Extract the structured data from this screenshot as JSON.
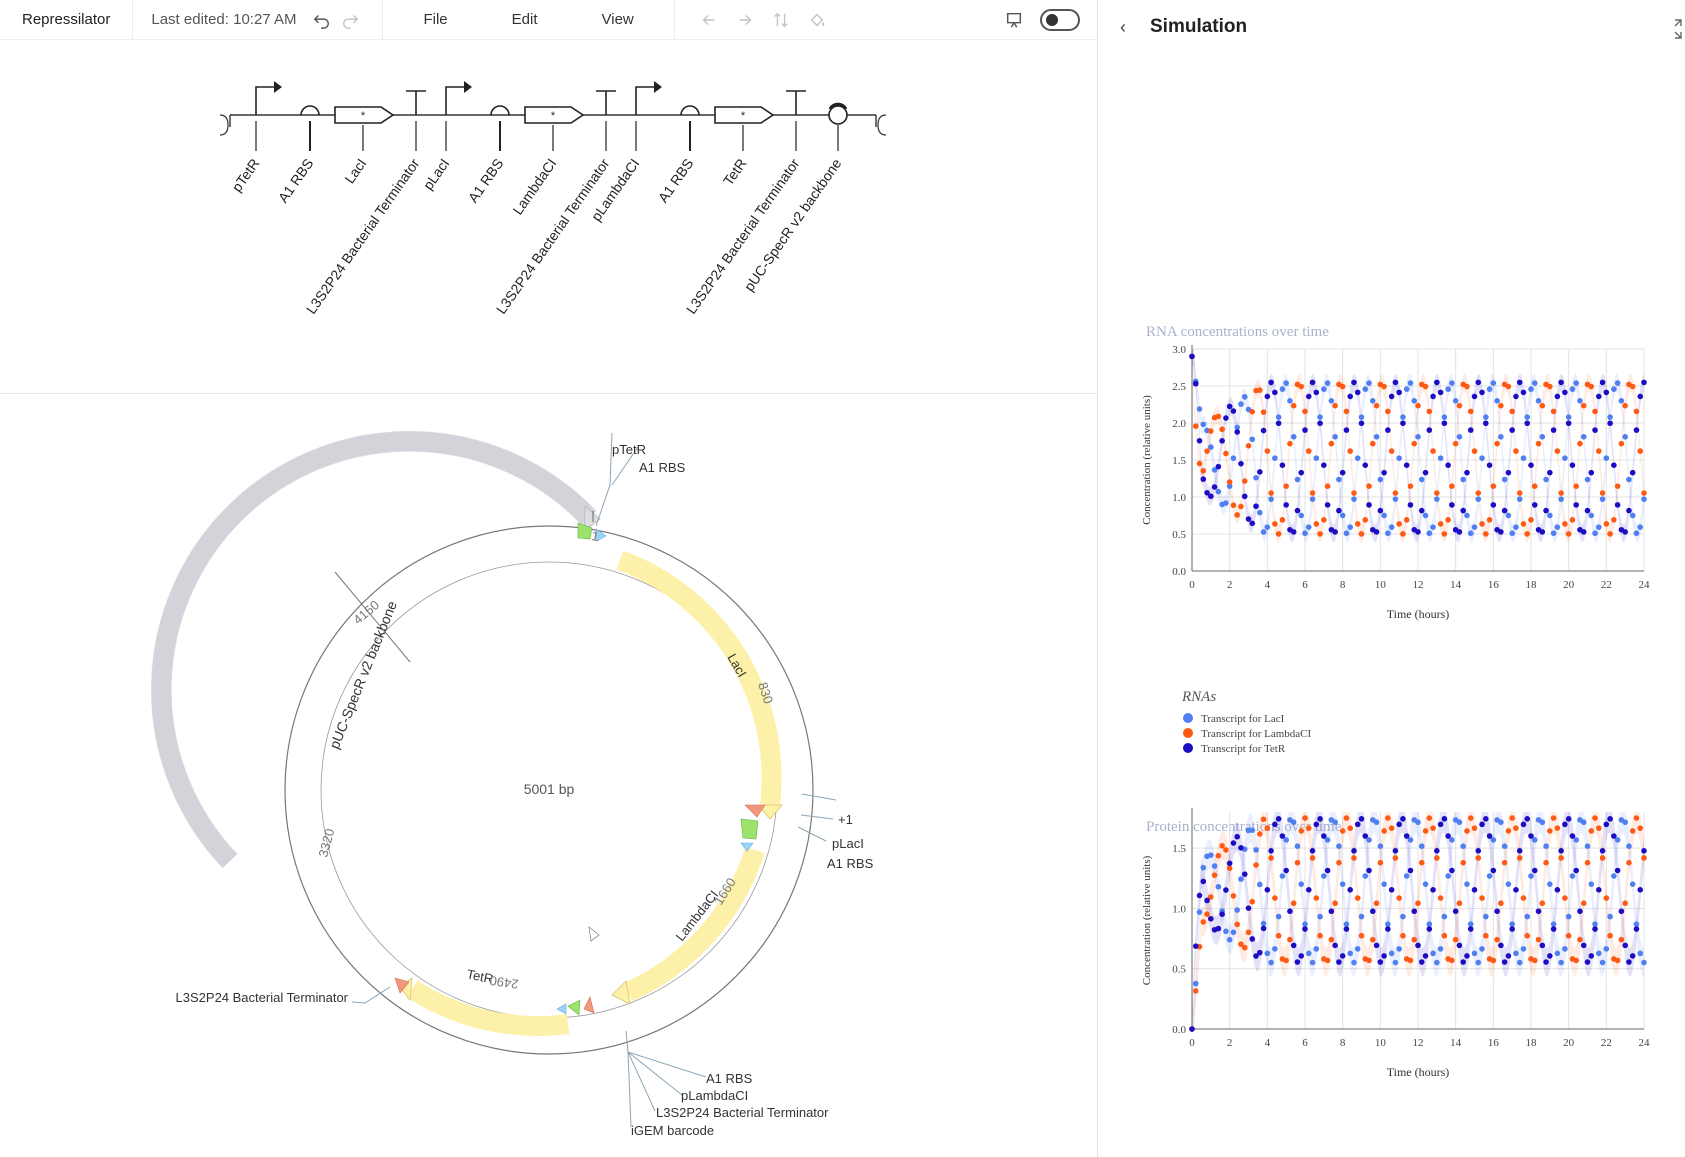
{
  "toolbar": {
    "title": "Repressilator",
    "last_edited": "Last edited: 10:27 AM",
    "menus": [
      "File",
      "Edit",
      "View"
    ]
  },
  "design": {
    "parts": [
      {
        "type": "promoter",
        "label": "pTetR"
      },
      {
        "type": "rbs",
        "label": "A1 RBS"
      },
      {
        "type": "cds",
        "label": "LacI"
      },
      {
        "type": "terminator",
        "label": "L3S2P24 Bacterial Terminator"
      },
      {
        "type": "promoter",
        "label": "pLacI"
      },
      {
        "type": "rbs",
        "label": "A1 RBS"
      },
      {
        "type": "cds",
        "label": "LambdaCI"
      },
      {
        "type": "terminator",
        "label": "L3S2P24 Bacterial Terminator"
      },
      {
        "type": "promoter",
        "label": "pLambdaCI"
      },
      {
        "type": "rbs",
        "label": "A1 RBS"
      },
      {
        "type": "cds",
        "label": "TetR"
      },
      {
        "type": "terminator",
        "label": "L3S2P24 Bacterial Terminator"
      },
      {
        "type": "origin",
        "label": "pUC-SpecR v2 backbone"
      }
    ]
  },
  "plasmid": {
    "size_label": "5001 bp",
    "ticks": [
      "1",
      "830",
      "1660",
      "2490",
      "3320",
      "4150"
    ],
    "feature_labels": {
      "lacI": "LacI",
      "lambdaCI": "LambdaCI",
      "tetR": "TetR",
      "backbone": "pUC-SpecR v2 backbone"
    },
    "annotations": {
      "ptetr": "pTetR",
      "a1rbs_top": "A1 RBS",
      "plus1": "+1",
      "placi": "pLacI",
      "a1rbs_right": "A1 RBS",
      "term_left": "L3S2P24 Bacterial Terminator",
      "a1rbs_bottom": "A1 RBS",
      "plambdaci": "pLambdaCI",
      "term_bottom": "L3S2P24 Bacterial Terminator",
      "igem": "iGEM barcode"
    }
  },
  "simulation": {
    "title": "Simulation",
    "colors": {
      "lacI": "#4f7ff0",
      "lambdaCI": "#ff5a14",
      "tetR": "#1c0cc4"
    },
    "legend_title": "RNAs",
    "legend_items": [
      "Transcript for LacI",
      "Transcript for LambdaCI",
      "Transcript for TetR"
    ],
    "rna_chart_title": "RNA concentrations over time",
    "protein_chart_title": "Protein concentrations over time"
  },
  "chart_data": [
    {
      "type": "scatter",
      "title": "RNA concentrations over time",
      "xlabel": "Time (hours)",
      "ylabel": "Concentration (relative units)",
      "xlim": [
        0,
        24
      ],
      "ylim": [
        0,
        3.0
      ],
      "xticks": [
        0,
        2,
        4,
        6,
        8,
        10,
        12,
        14,
        16,
        18,
        20,
        22,
        24
      ],
      "yticks": [
        0.0,
        0.5,
        1.0,
        1.5,
        2.0,
        2.5,
        3.0
      ],
      "grid": true,
      "oscillation": {
        "period_hours": 2.2,
        "initial": 2.9,
        "low": 0.5,
        "high": 2.55,
        "sample_step_hours": 0.2
      },
      "series": [
        {
          "name": "Transcript for LacI",
          "color": "#4f7ff0",
          "phase": 0.0
        },
        {
          "name": "Transcript for LambdaCI",
          "color": "#ff5a14",
          "phase": 0.333
        },
        {
          "name": "Transcript for TetR",
          "color": "#1c0cc4",
          "phase": 0.667
        }
      ]
    },
    {
      "type": "scatter",
      "title": "Protein concentrations over time",
      "xlabel": "Time (hours)",
      "ylabel": "Concentration (relative units)",
      "xlim": [
        0,
        24
      ],
      "ylim": [
        0,
        1.8
      ],
      "xticks": [
        0,
        2,
        4,
        6,
        8,
        10,
        12,
        14,
        16,
        18,
        20,
        22,
        24
      ],
      "yticks": [
        0.0,
        0.5,
        1.0,
        1.5
      ],
      "grid": true,
      "oscillation": {
        "period_hours": 2.2,
        "initial": 0.0,
        "low": 0.55,
        "high": 1.75,
        "sample_step_hours": 0.2
      },
      "series": [
        {
          "name": "Transcript for LacI",
          "color": "#4f7ff0",
          "phase": 0.15
        },
        {
          "name": "Transcript for LambdaCI",
          "color": "#ff5a14",
          "phase": 0.483
        },
        {
          "name": "Transcript for TetR",
          "color": "#1c0cc4",
          "phase": 0.817
        }
      ]
    }
  ]
}
